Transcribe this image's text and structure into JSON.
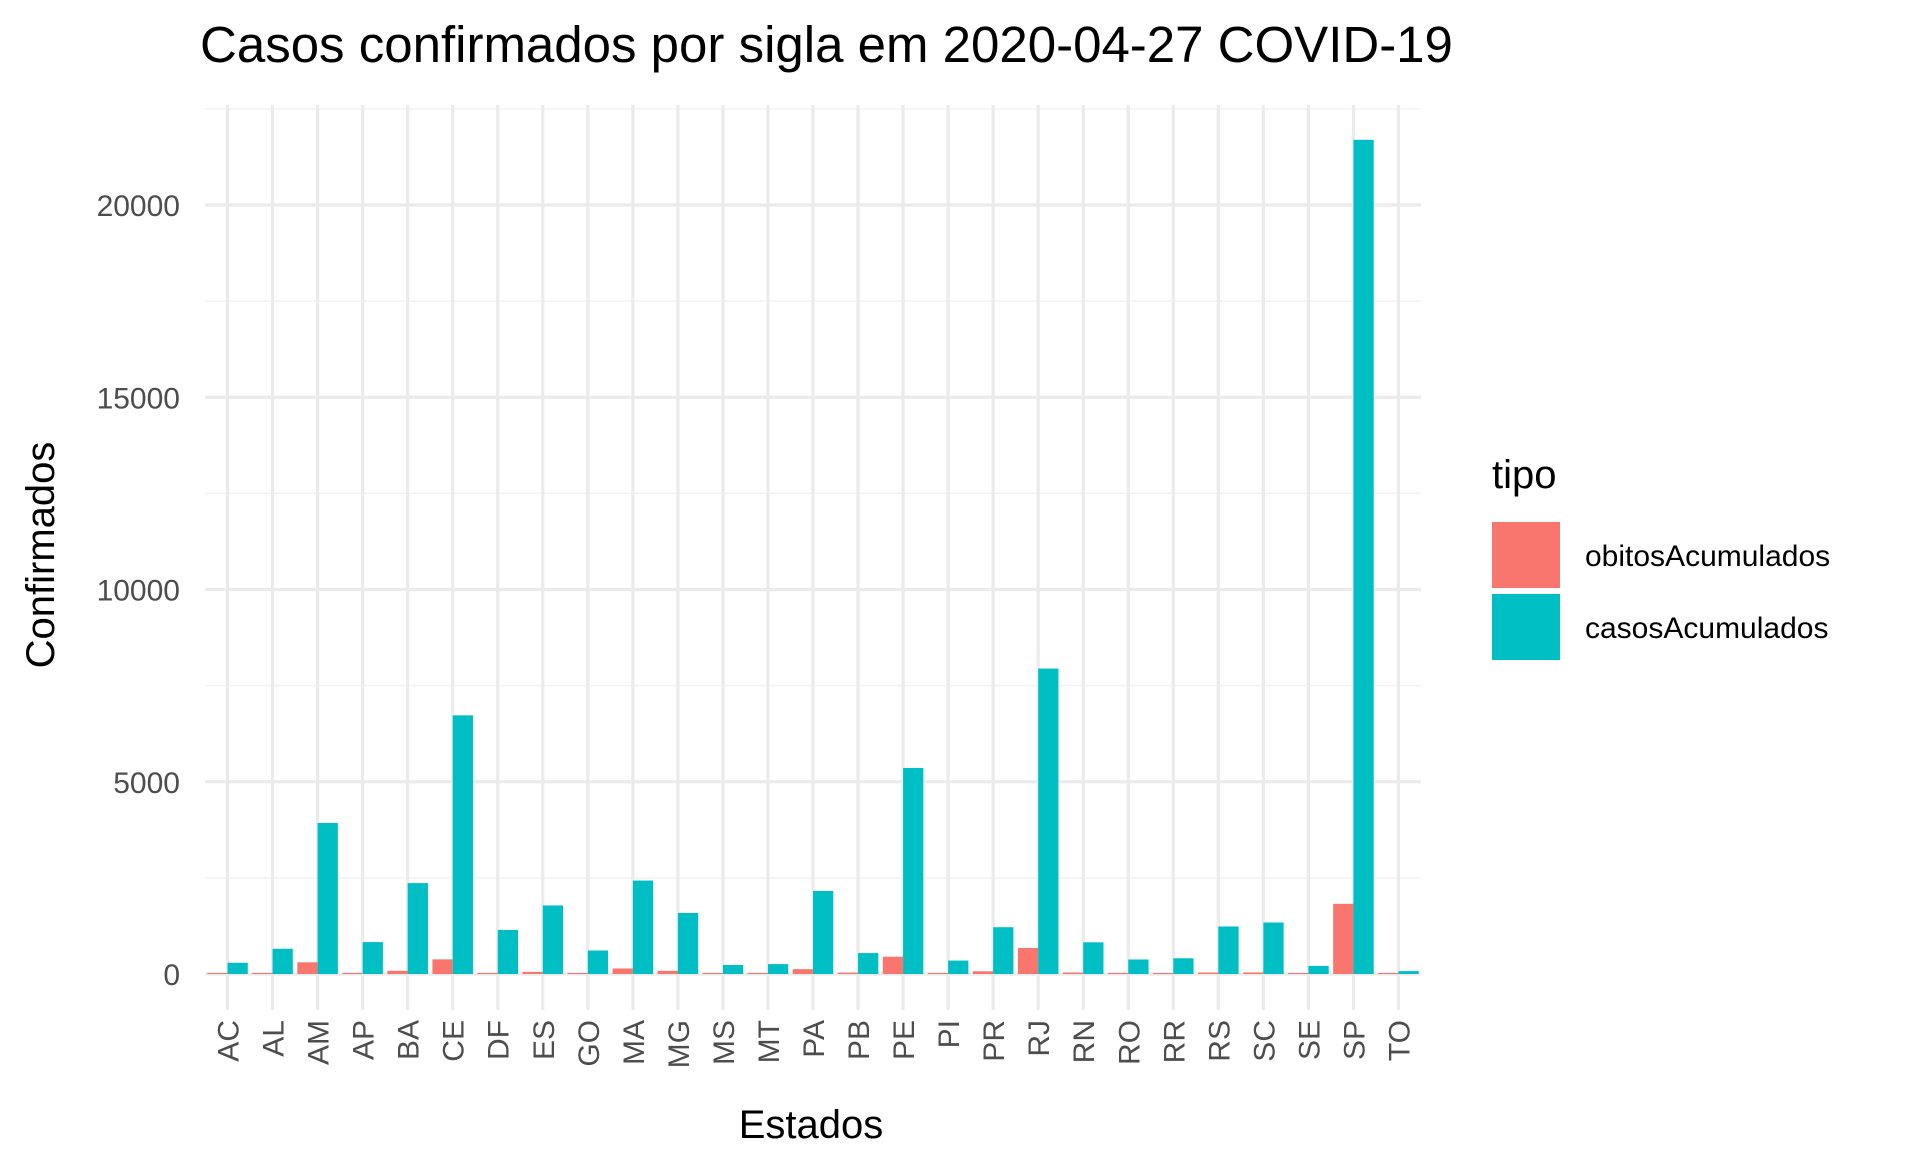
{
  "chart_data": {
    "type": "bar",
    "title": "Casos confirmados por sigla em 2020-04-27 COVID-19",
    "xlabel": "Estados",
    "ylabel": "Confirmados",
    "categories": [
      "AC",
      "AL",
      "AM",
      "AP",
      "BA",
      "CE",
      "DF",
      "ES",
      "GO",
      "MA",
      "MG",
      "MS",
      "MT",
      "PA",
      "PB",
      "PE",
      "PI",
      "PR",
      "RJ",
      "RN",
      "RO",
      "RR",
      "RS",
      "SC",
      "SE",
      "SP",
      "TO"
    ],
    "series": [
      {
        "name": "obitosAcumulados",
        "color": "#F8766D",
        "values": [
          8,
          28,
          304,
          19,
          83,
          381,
          28,
          55,
          25,
          144,
          82,
          8,
          10,
          126,
          36,
          450,
          20,
          70,
          677,
          38,
          15,
          4,
          38,
          40,
          14,
          1825,
          2
        ]
      },
      {
        "name": "casosAcumulados",
        "color": "#00BFC4",
        "values": [
          292,
          656,
          3928,
          830,
          2364,
          6727,
          1144,
          1783,
          611,
          2430,
          1587,
          234,
          257,
          2160,
          544,
          5358,
          349,
          1217,
          7944,
          824,
          378,
          409,
          1236,
          1339,
          211,
          21696,
          75
        ]
      }
    ],
    "ylim": [
      0,
      22500
    ],
    "yticks": [
      0,
      5000,
      10000,
      15000,
      20000
    ],
    "grid": true,
    "legend": {
      "title": "tipo",
      "placement": "right"
    }
  }
}
